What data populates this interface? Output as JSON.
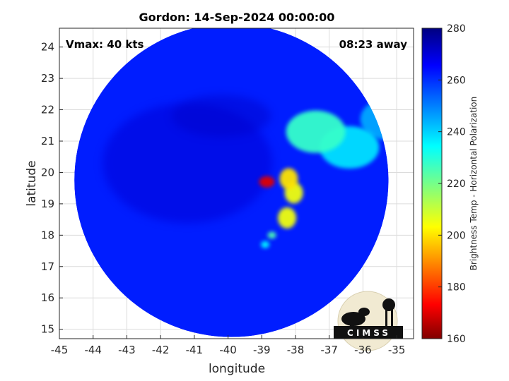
{
  "chart_data": {
    "type": "heatmap",
    "title": "Gordon: 14-Sep-2024 00:00:00",
    "annotations": {
      "vmax": "Vmax: 40 kts",
      "time_away": "08:23 away"
    },
    "xlabel": "longitude",
    "ylabel": "latitude",
    "xlim": [
      -45,
      -34.5
    ],
    "ylim": [
      14.7,
      24.6
    ],
    "xticks": [
      -45,
      -44,
      -43,
      -42,
      -41,
      -40,
      -39,
      -38,
      -37,
      -36,
      -35
    ],
    "yticks": [
      15,
      16,
      17,
      18,
      19,
      20,
      21,
      22,
      23,
      24
    ],
    "grid": true,
    "colorbar": {
      "label": "Brightness Temp - Horizontal Polarization",
      "range": [
        160,
        280
      ],
      "ticks": [
        160,
        180,
        200,
        220,
        240,
        260,
        280
      ],
      "colormap": "jet"
    },
    "swath": {
      "shape": "circle",
      "center_lon": -39.9,
      "center_lat": 19.75,
      "radius_deg_lat": 5.0
    },
    "features": [
      {
        "name": "cold core",
        "lon": -38.85,
        "lat": 19.7,
        "brightness_temp": 170
      },
      {
        "name": "convection",
        "lon": -38.2,
        "lat": 19.8,
        "brightness_temp": 200
      },
      {
        "name": "convection",
        "lon": -38.05,
        "lat": 19.35,
        "brightness_temp": 205
      },
      {
        "name": "convection",
        "lon": -38.25,
        "lat": 18.55,
        "brightness_temp": 205
      },
      {
        "name": "band",
        "lon": -38.7,
        "lat": 18.0,
        "brightness_temp": 225
      },
      {
        "name": "band",
        "lon": -38.9,
        "lat": 17.7,
        "brightness_temp": 235
      },
      {
        "name": "warm band",
        "lon": -37.4,
        "lat": 21.3,
        "brightness_temp": 228
      },
      {
        "name": "warm band",
        "lon": -36.4,
        "lat": 20.8,
        "brightness_temp": 238
      },
      {
        "name": "warm band",
        "lon": -35.2,
        "lat": 21.7,
        "brightness_temp": 245
      }
    ],
    "background_brightness_temp": 262
  },
  "logo": {
    "text": "CIMSS"
  }
}
